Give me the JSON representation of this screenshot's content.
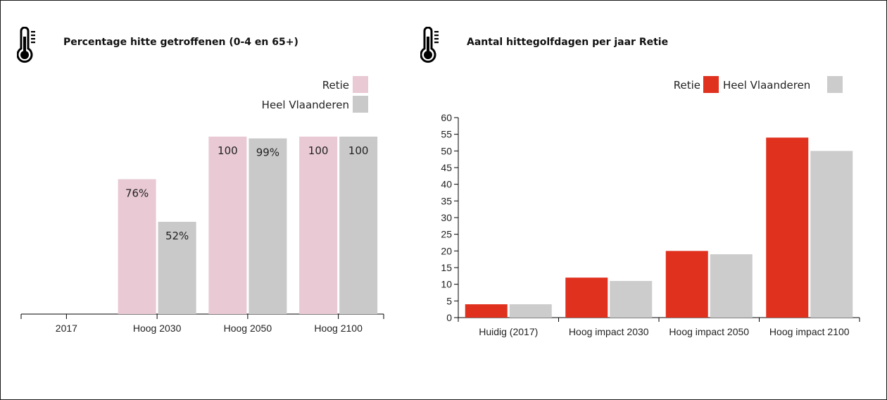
{
  "colors": {
    "left_retie": "#e8c9d4",
    "left_vlaanderen": "#c9c9c9",
    "right_retie": "#e0301e",
    "right_vlaanderen": "#cccccc",
    "axis": "#000000"
  },
  "icons": {
    "left": "thermometer-icon",
    "right": "thermometer-icon"
  },
  "chart_data": [
    {
      "type": "bar",
      "title": "Percentage hitte getroffenen (0-4 en 65+)",
      "categories": [
        "2017",
        "Hoog 2030",
        "Hoog 2050",
        "Hoog 2100"
      ],
      "series": [
        {
          "name": "Retie",
          "values": [
            0,
            76,
            100,
            100
          ],
          "labels": [
            "",
            "76%",
            "100",
            "100"
          ]
        },
        {
          "name": "Heel Vlaanderen",
          "values": [
            0,
            52,
            99,
            100
          ],
          "labels": [
            "",
            "52%",
            "99%",
            "100"
          ]
        }
      ],
      "ylim": [
        0,
        100
      ],
      "y_axis_shown": false,
      "legend_position": "top-right"
    },
    {
      "type": "bar",
      "title": "Aantal hittegolfdagen per jaar Retie",
      "categories": [
        "Huidig (2017)",
        "Hoog impact 2030",
        "Hoog impact 2050",
        "Hoog impact 2100"
      ],
      "series": [
        {
          "name": "Retie",
          "values": [
            4,
            12,
            20,
            54
          ]
        },
        {
          "name": "Heel Vlaanderen",
          "values": [
            4,
            11,
            19,
            50
          ]
        }
      ],
      "ylim": [
        0,
        60
      ],
      "yticks": [
        "0",
        "5",
        "10",
        "15",
        "20",
        "25",
        "30",
        "35",
        "40",
        "45",
        "50",
        "55",
        "60"
      ],
      "legend_position": "top-right"
    }
  ]
}
